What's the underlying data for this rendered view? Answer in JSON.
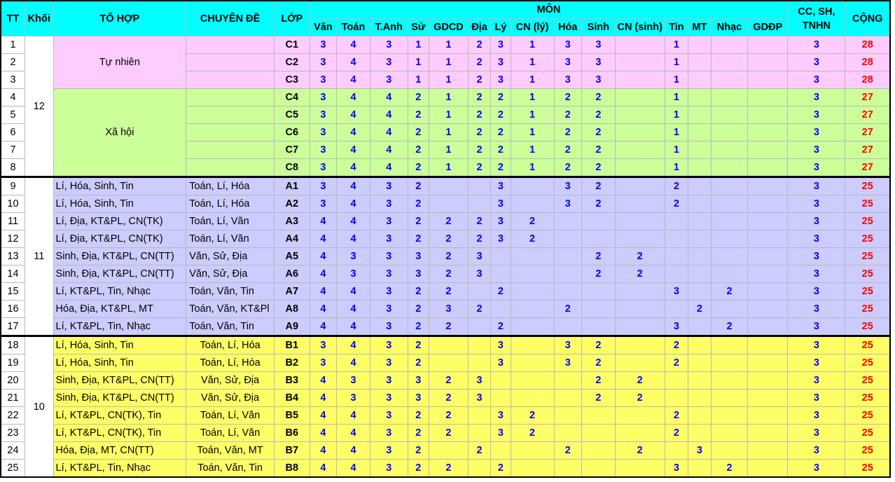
{
  "headers": {
    "tt": "TT",
    "khoi": "Khối",
    "to_hop": "TỔ HỢP",
    "chuyen_de": "CHUYÊN ĐỀ",
    "lop": "LỚP",
    "mon": "MÔN",
    "cc": "CC, SH, TNHN",
    "cong": "CỘNG",
    "subjects": [
      "Văn",
      "Toán",
      "T.Anh",
      "Sử",
      "GDCD",
      "Địa",
      "Lý",
      "CN (lý)",
      "Hóa",
      "Sinh",
      "CN (sinh)",
      "Tin",
      "MT",
      "Nhạc",
      "GDĐP"
    ]
  },
  "groups": [
    {
      "khoi": "12",
      "rows": [
        1,
        8
      ]
    },
    {
      "khoi": "11",
      "rows": [
        9,
        17
      ]
    },
    {
      "khoi": "10",
      "rows": [
        18,
        25
      ]
    }
  ],
  "merged_to_hop": [
    {
      "label": "Tự nhiên",
      "start": 1,
      "span": 3
    },
    {
      "label": "Xã hội",
      "start": 4,
      "span": 5
    }
  ],
  "rows": [
    {
      "tt": "1",
      "to_hop": "",
      "chuyen_de": "",
      "lop": "C1",
      "v": [
        "3",
        "4",
        "3",
        "1",
        "1",
        "2",
        "3",
        "1",
        "3",
        "3",
        "",
        "1",
        "",
        "",
        ""
      ],
      "cc": "3",
      "cong": "28",
      "color": "pink"
    },
    {
      "tt": "2",
      "to_hop": "",
      "chuyen_de": "",
      "lop": "C2",
      "v": [
        "3",
        "4",
        "3",
        "1",
        "1",
        "2",
        "3",
        "1",
        "3",
        "3",
        "",
        "1",
        "",
        "",
        ""
      ],
      "cc": "3",
      "cong": "28",
      "color": "pink"
    },
    {
      "tt": "3",
      "to_hop": "",
      "chuyen_de": "",
      "lop": "C3",
      "v": [
        "3",
        "4",
        "3",
        "1",
        "1",
        "2",
        "3",
        "1",
        "3",
        "3",
        "",
        "1",
        "",
        "",
        ""
      ],
      "cc": "3",
      "cong": "28",
      "color": "pink"
    },
    {
      "tt": "4",
      "to_hop": "",
      "chuyen_de": "",
      "lop": "C4",
      "v": [
        "3",
        "4",
        "4",
        "2",
        "1",
        "2",
        "2",
        "1",
        "2",
        "2",
        "",
        "1",
        "",
        "",
        ""
      ],
      "cc": "3",
      "cong": "27",
      "color": "green"
    },
    {
      "tt": "5",
      "to_hop": "",
      "chuyen_de": "",
      "lop": "C5",
      "v": [
        "3",
        "4",
        "4",
        "2",
        "1",
        "2",
        "2",
        "1",
        "2",
        "2",
        "",
        "1",
        "",
        "",
        ""
      ],
      "cc": "3",
      "cong": "27",
      "color": "green"
    },
    {
      "tt": "6",
      "to_hop": "",
      "chuyen_de": "",
      "lop": "C6",
      "v": [
        "3",
        "4",
        "4",
        "2",
        "1",
        "2",
        "2",
        "1",
        "2",
        "2",
        "",
        "1",
        "",
        "",
        ""
      ],
      "cc": "3",
      "cong": "27",
      "color": "green"
    },
    {
      "tt": "7",
      "to_hop": "",
      "chuyen_de": "",
      "lop": "C7",
      "v": [
        "3",
        "4",
        "4",
        "2",
        "1",
        "2",
        "2",
        "1",
        "2",
        "2",
        "",
        "1",
        "",
        "",
        ""
      ],
      "cc": "3",
      "cong": "27",
      "color": "green"
    },
    {
      "tt": "8",
      "to_hop": "",
      "chuyen_de": "",
      "lop": "C8",
      "v": [
        "3",
        "4",
        "4",
        "2",
        "1",
        "2",
        "2",
        "1",
        "2",
        "2",
        "",
        "1",
        "",
        "",
        ""
      ],
      "cc": "3",
      "cong": "27",
      "color": "green"
    },
    {
      "tt": "9",
      "to_hop": "Lí, Hóa, Sinh, Tin",
      "chuyen_de": "Toán, Lí, Hóa",
      "lop": "A1",
      "v": [
        "3",
        "4",
        "3",
        "2",
        "",
        "",
        "3",
        "",
        "3",
        "2",
        "",
        "2",
        "",
        "",
        ""
      ],
      "cc": "3",
      "cong": "25",
      "color": "lav"
    },
    {
      "tt": "10",
      "to_hop": "Lí, Hóa, Sinh, Tin",
      "chuyen_de": "Toán, Lí, Hóa",
      "lop": "A2",
      "v": [
        "3",
        "4",
        "3",
        "2",
        "",
        "",
        "3",
        "",
        "3",
        "2",
        "",
        "2",
        "",
        "",
        ""
      ],
      "cc": "3",
      "cong": "25",
      "color": "lav"
    },
    {
      "tt": "11",
      "to_hop": "Lí, Địa, KT&PL, CN(TK)",
      "chuyen_de": "Toán, Lí, Văn",
      "lop": "A3",
      "v": [
        "4",
        "4",
        "3",
        "2",
        "2",
        "2",
        "3",
        "2",
        "",
        "",
        "",
        "",
        "",
        "",
        ""
      ],
      "cc": "3",
      "cong": "25",
      "color": "lav"
    },
    {
      "tt": "12",
      "to_hop": "Lí, Địa, KT&PL, CN(TK)",
      "chuyen_de": "Toán, Lí, Văn",
      "lop": "A4",
      "v": [
        "4",
        "4",
        "3",
        "2",
        "2",
        "2",
        "3",
        "2",
        "",
        "",
        "",
        "",
        "",
        "",
        ""
      ],
      "cc": "3",
      "cong": "25",
      "color": "lav"
    },
    {
      "tt": "13",
      "to_hop": "Sinh, Địa, KT&PL, CN(TT)",
      "chuyen_de": "Văn, Sử, Địa",
      "lop": "A5",
      "v": [
        "4",
        "3",
        "3",
        "3",
        "2",
        "3",
        "",
        "",
        "",
        "2",
        "2",
        "",
        "",
        "",
        ""
      ],
      "cc": "3",
      "cong": "25",
      "color": "lav"
    },
    {
      "tt": "14",
      "to_hop": "Sinh, Địa, KT&PL, CN(TT)",
      "chuyen_de": "Văn, Sử, Địa",
      "lop": "A6",
      "v": [
        "4",
        "3",
        "3",
        "3",
        "2",
        "3",
        "",
        "",
        "",
        "2",
        "2",
        "",
        "",
        "",
        ""
      ],
      "cc": "3",
      "cong": "25",
      "color": "lav"
    },
    {
      "tt": "15",
      "to_hop": "Lí, KT&PL, Tin, Nhạc",
      "chuyen_de": "Toán, Văn, Tin",
      "lop": "A7",
      "v": [
        "4",
        "4",
        "3",
        "2",
        "2",
        "",
        "2",
        "",
        "",
        "",
        "",
        "3",
        "",
        "2",
        ""
      ],
      "cc": "3",
      "cong": "25",
      "color": "lav"
    },
    {
      "tt": "16",
      "to_hop": "Hóa, Địa, KT&PL, MT",
      "chuyen_de": "Toán, Văn, KT&Pl",
      "lop": "A8",
      "v": [
        "4",
        "4",
        "3",
        "2",
        "3",
        "2",
        "",
        "",
        "2",
        "",
        "",
        "",
        "2",
        "",
        ""
      ],
      "cc": "3",
      "cong": "25",
      "color": "lav"
    },
    {
      "tt": "17",
      "to_hop": "Lí, KT&PL, Tin, Nhạc",
      "chuyen_de": "Toán, Văn, Tin",
      "lop": "A9",
      "v": [
        "4",
        "4",
        "3",
        "2",
        "2",
        "",
        "2",
        "",
        "",
        "",
        "",
        "3",
        "",
        "2",
        ""
      ],
      "cc": "3",
      "cong": "25",
      "color": "lav"
    },
    {
      "tt": "18",
      "to_hop": "Lí, Hóa, Sinh, Tin",
      "chuyen_de": "Toán, Lí, Hóa",
      "lop": "B1",
      "v": [
        "3",
        "4",
        "3",
        "2",
        "",
        "",
        "3",
        "",
        "3",
        "2",
        "",
        "2",
        "",
        "",
        ""
      ],
      "cc": "3",
      "cong": "25",
      "color": "yel"
    },
    {
      "tt": "19",
      "to_hop": "Lí, Hóa, Sinh, Tin",
      "chuyen_de": "Toán, Lí, Hóa",
      "lop": "B2",
      "v": [
        "3",
        "4",
        "3",
        "2",
        "",
        "",
        "3",
        "",
        "3",
        "2",
        "",
        "2",
        "",
        "",
        ""
      ],
      "cc": "3",
      "cong": "25",
      "color": "yel"
    },
    {
      "tt": "20",
      "to_hop": "Sinh, Địa, KT&PL, CN(TT)",
      "chuyen_de": "Văn, Sử, Địa",
      "lop": "B3",
      "v": [
        "4",
        "3",
        "3",
        "3",
        "2",
        "3",
        "",
        "",
        "",
        "2",
        "2",
        "",
        "",
        "",
        ""
      ],
      "cc": "3",
      "cong": "25",
      "color": "yel"
    },
    {
      "tt": "21",
      "to_hop": "Sinh, Địa, KT&PL, CN(TT)",
      "chuyen_de": "Văn, Sử, Địa",
      "lop": "B4",
      "v": [
        "4",
        "3",
        "3",
        "3",
        "2",
        "3",
        "",
        "",
        "",
        "2",
        "2",
        "",
        "",
        "",
        ""
      ],
      "cc": "3",
      "cong": "25",
      "color": "yel"
    },
    {
      "tt": "22",
      "to_hop": "Lí, KT&PL, CN(TK), Tin",
      "chuyen_de": "Toán, Lí, Văn",
      "lop": "B5",
      "v": [
        "4",
        "4",
        "3",
        "2",
        "2",
        "",
        "3",
        "2",
        "",
        "",
        "",
        "2",
        "",
        "",
        ""
      ],
      "cc": "3",
      "cong": "25",
      "color": "yel"
    },
    {
      "tt": "23",
      "to_hop": "Lí, KT&PL, CN(TK), Tin",
      "chuyen_de": "Toán, Lí, Văn",
      "lop": "B6",
      "v": [
        "4",
        "4",
        "3",
        "2",
        "2",
        "",
        "3",
        "2",
        "",
        "",
        "",
        "2",
        "",
        "",
        ""
      ],
      "cc": "3",
      "cong": "25",
      "color": "yel"
    },
    {
      "tt": "24",
      "to_hop": "Hóa, Địa, MT, CN(TT)",
      "chuyen_de": "Toán, Văn, MT",
      "lop": "B7",
      "v": [
        "4",
        "4",
        "3",
        "2",
        "",
        "2",
        "",
        "",
        "2",
        "",
        "2",
        "",
        "3",
        "",
        ""
      ],
      "cc": "3",
      "cong": "25",
      "color": "yel"
    },
    {
      "tt": "25",
      "to_hop": "Lí, KT&PL, Tin, Nhạc",
      "chuyen_de": "Toán, Văn, Tin",
      "lop": "B8",
      "v": [
        "4",
        "4",
        "3",
        "2",
        "2",
        "",
        "2",
        "",
        "",
        "",
        "",
        "3",
        "",
        "2",
        ""
      ],
      "cc": "3",
      "cong": "25",
      "color": "yel"
    }
  ]
}
